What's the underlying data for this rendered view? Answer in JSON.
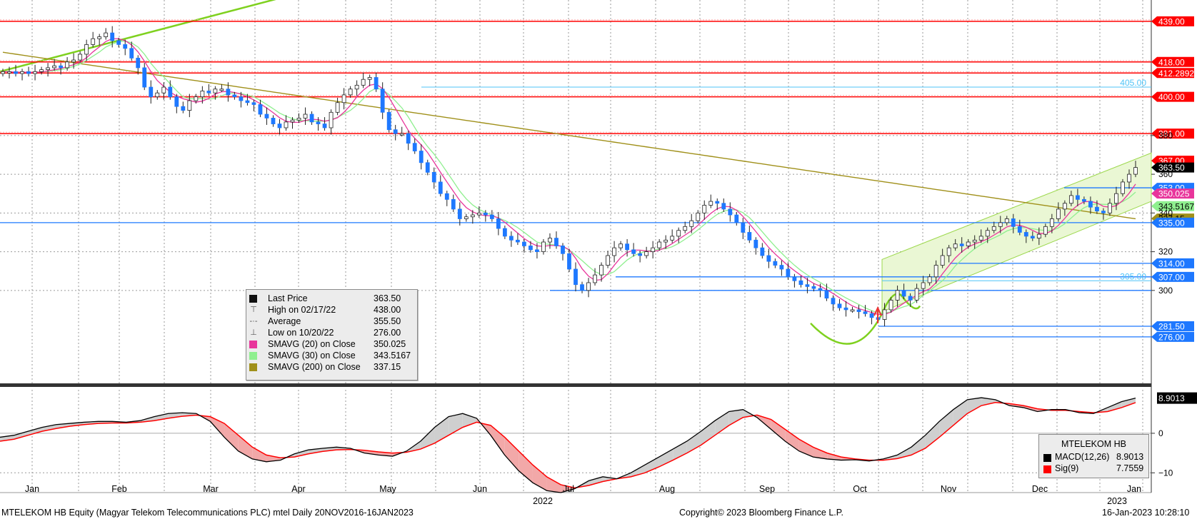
{
  "chart_data": [
    {
      "type": "candlestick",
      "title": "",
      "security": "MTELEKOM HB",
      "ylim": [
        252,
        450
      ],
      "y_axis_ticks": [
        300,
        320,
        340,
        360,
        380
      ],
      "x_axis_months": [
        "Jan",
        "Feb",
        "Mar",
        "Apr",
        "May",
        "Jun",
        "Jul",
        "Aug",
        "Sep",
        "Oct",
        "Nov",
        "Dec",
        "Jan"
      ],
      "x_axis_years": [
        "2022",
        "2023"
      ],
      "grid": true,
      "legend_position": "lower-center",
      "series": [
        {
          "name": "Last Price",
          "color": "#1e78ff",
          "close": [
            413,
            413,
            412,
            413,
            412,
            413,
            414,
            415,
            416,
            415,
            418,
            419,
            422,
            427,
            430,
            431,
            433,
            429,
            427,
            425,
            420,
            415,
            405,
            400,
            402,
            405,
            400,
            395,
            393,
            398,
            400,
            403,
            402,
            404,
            404,
            401,
            400,
            398,
            397,
            396,
            391,
            389,
            386,
            384,
            387,
            388,
            389,
            391,
            387,
            386,
            384,
            392,
            397,
            401,
            404,
            406,
            409,
            410,
            404,
            392,
            383,
            381,
            381,
            376,
            372,
            366,
            361,
            356,
            350,
            347,
            342,
            337,
            338,
            339,
            340,
            339,
            337,
            332,
            328,
            326,
            325,
            323,
            321,
            320,
            325,
            327,
            323,
            319,
            311,
            303,
            300,
            304,
            308,
            313,
            318,
            322,
            324,
            321,
            319,
            318,
            320,
            322,
            325,
            326,
            328,
            331,
            333,
            336,
            340,
            344,
            346,
            345,
            342,
            339,
            335,
            330,
            326,
            322,
            318,
            315,
            313,
            311,
            307,
            305,
            303,
            302,
            301,
            300,
            296,
            293,
            291,
            290,
            290,
            289,
            288,
            286,
            285,
            290,
            295,
            300,
            297,
            295,
            301,
            304,
            307,
            313,
            318,
            322,
            324,
            323,
            325,
            326,
            328,
            331,
            333,
            335,
            337,
            333,
            330,
            328,
            327,
            329,
            333,
            337,
            342,
            345,
            349,
            347,
            346,
            343,
            341,
            340,
            345,
            350,
            356,
            360,
            363.5
          ]
        },
        {
          "name": "SMAVG (20)  on Close",
          "color": "#e8359b"
        },
        {
          "name": "SMAVG (30)  on Close",
          "color": "#8fef8f"
        },
        {
          "name": "SMAVG (200)  on Close",
          "color": "#a0901a"
        },
        {
          "name": "MACD(12,26)",
          "color": "#000000"
        },
        {
          "name": "Sig(9)",
          "color": "#ff0000"
        }
      ],
      "price_levels_red": [
        439.0,
        418.0,
        412.2892,
        400.0,
        381.0
      ],
      "price_levels_blue": [
        335.0,
        314.0,
        307.0,
        300.0,
        281.5,
        276.0,
        353.0
      ],
      "right_axis_labels": [
        {
          "text": "439.00",
          "value": 439.0,
          "bg": "#ff0000"
        },
        {
          "text": "418.00",
          "value": 418.0,
          "bg": "#ff0000"
        },
        {
          "text": "412.2892",
          "value": 412.2892,
          "bg": "#ff0000"
        },
        {
          "text": "400.00",
          "value": 400.0,
          "bg": "#ff0000"
        },
        {
          "text": "381.00",
          "value": 381.0,
          "bg": "#ff0000"
        },
        {
          "text": "367.00",
          "value": 367.0,
          "bg": "#ff0000"
        },
        {
          "text": "363.50",
          "value": 363.5,
          "bg": "#000000"
        },
        {
          "text": "353.00",
          "value": 353.0,
          "bg": "#1e78ff"
        },
        {
          "text": "350.025",
          "value": 350.025,
          "bg": "#e8359b"
        },
        {
          "text": "343.5167",
          "value": 343.5167,
          "bg": "#8fef8f"
        },
        {
          "text": "337.15",
          "value": 337.15,
          "bg": "#a0901a"
        },
        {
          "text": "335.00",
          "value": 335.0,
          "bg": "#1e78ff"
        },
        {
          "text": "314.00",
          "value": 314.0,
          "bg": "#1e78ff"
        },
        {
          "text": "307.00",
          "value": 307.0,
          "bg": "#1e78ff"
        },
        {
          "text": "281.50",
          "value": 281.5,
          "bg": "#1e78ff"
        },
        {
          "text": "276.00",
          "value": 276.0,
          "bg": "#1e78ff"
        }
      ],
      "plain_level_labels": [
        {
          "text": "405.00",
          "value": 405.0
        },
        {
          "text": "305.00",
          "value": 305.0
        }
      ]
    },
    {
      "type": "line",
      "title": "MACD",
      "ylim": [
        -15,
        11
      ],
      "y_axis_ticks": [
        0,
        -10
      ],
      "macd_value_label": "8.9013",
      "series": [
        {
          "name": "MACD(12,26)",
          "values": [
            -1,
            -0.5,
            0.5,
            1.5,
            2.2,
            2.5,
            2.8,
            3.0,
            3.0,
            2.8,
            3.2,
            4.2,
            5.0,
            5.2,
            5.0,
            3.0,
            -1.0,
            -4.5,
            -6.5,
            -7.2,
            -6.8,
            -5.2,
            -4.2,
            -3.8,
            -3.5,
            -3.8,
            -5.0,
            -5.5,
            -5.8,
            -4.5,
            -2.0,
            1.5,
            4.2,
            5.0,
            3.8,
            -0.5,
            -5.5,
            -9.5,
            -12.5,
            -14.5,
            -15.0,
            -14.0,
            -12.0,
            -11.0,
            -11.5,
            -10.0,
            -8.0,
            -6.0,
            -4.0,
            -2.0,
            0.5,
            3.2,
            5.5,
            6.0,
            4.0,
            1.0,
            -2.0,
            -4.5,
            -6.0,
            -6.5,
            -6.8,
            -6.7,
            -7.0,
            -6.5,
            -5.5,
            -3.5,
            -0.5,
            3.0,
            6.0,
            8.5,
            9.0,
            8.5,
            7.0,
            6.5,
            5.5,
            6.0,
            6.0,
            5.2,
            5.0,
            6.5,
            8.0,
            8.9
          ]
        },
        {
          "name": "Sig(9)",
          "values": [
            -2,
            -1.5,
            -0.5,
            0.5,
            1.2,
            1.8,
            2.2,
            2.5,
            2.6,
            2.6,
            2.8,
            3.2,
            3.8,
            4.3,
            4.6,
            4.2,
            2.5,
            -0.5,
            -3.5,
            -5.5,
            -6.2,
            -6.0,
            -5.2,
            -4.6,
            -4.2,
            -4.1,
            -4.3,
            -4.7,
            -5.0,
            -4.8,
            -4.0,
            -2.5,
            -0.5,
            1.5,
            2.8,
            2.0,
            -1.0,
            -4.5,
            -8.0,
            -11.0,
            -13.0,
            -13.8,
            -13.2,
            -12.2,
            -11.5,
            -11.0,
            -10.0,
            -8.5,
            -6.8,
            -5.0,
            -3.0,
            -0.5,
            2.0,
            4.0,
            4.6,
            3.5,
            1.0,
            -1.5,
            -3.5,
            -5.0,
            -6.0,
            -6.5,
            -6.8,
            -6.8,
            -6.4,
            -5.5,
            -3.8,
            -1.0,
            2.0,
            5.0,
            7.0,
            7.8,
            7.5,
            7.0,
            6.2,
            5.8,
            5.8,
            5.5,
            5.2,
            5.5,
            6.5,
            7.76
          ]
        }
      ]
    }
  ],
  "legend": {
    "items": [
      {
        "label": "Last Price",
        "value": "363.50",
        "color": "#111111",
        "icon": "black-square-icon"
      },
      {
        "label": "High on 02/17/22",
        "value": "438.00",
        "icon": "high-marker-icon"
      },
      {
        "label": "Average",
        "value": "355.50",
        "icon": "average-marker-icon"
      },
      {
        "label": "Low on 10/20/22",
        "value": "276.00",
        "icon": "low-marker-icon"
      },
      {
        "label": "SMAVG (20)  on Close",
        "value": "350.025",
        "color": "#e8359b"
      },
      {
        "label": "SMAVG (30)  on Close",
        "value": "343.5167",
        "color": "#8fef8f"
      },
      {
        "label": "SMAVG (200)  on Close",
        "value": "337.15",
        "color": "#a0901a"
      }
    ]
  },
  "macd_legend": {
    "title": "MTELEKOM HB",
    "items": [
      {
        "label": "MACD(12,26)",
        "value": "8.9013",
        "color": "#000000"
      },
      {
        "label": "Sig(9)",
        "value": "7.7559",
        "color": "#ff0000"
      }
    ]
  },
  "footer": {
    "left": "MTELEKOM HB Equity (Magyar Telekom Telecommunications PLC) mtel  Daily 20NOV2016-16JAN2023",
    "center": "Copyright© 2023 Bloomberg Finance L.P.",
    "right": "16-Jan-2023 10:28:10"
  },
  "colors": {
    "up": "#ffffff",
    "down": "#1e78ff",
    "red_level": "#ff0000",
    "blue_level": "#1e78ff",
    "trend": "#7fd11f",
    "channel_fill": "#eaf7d4"
  }
}
